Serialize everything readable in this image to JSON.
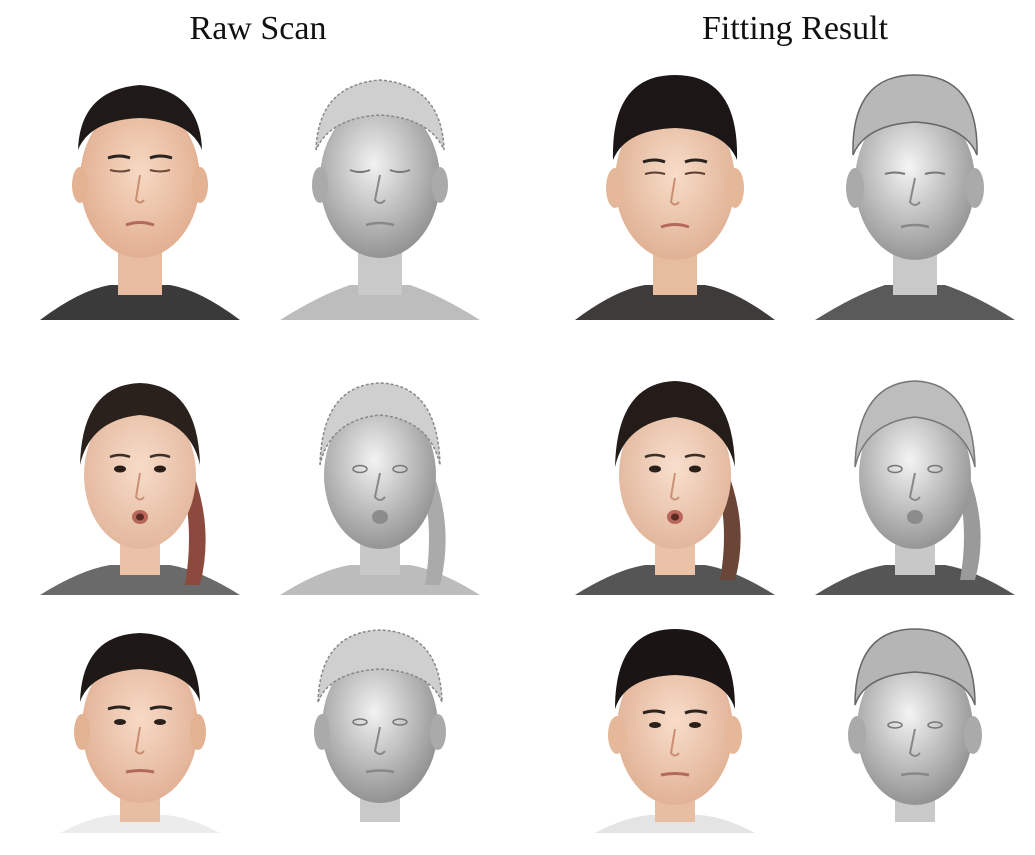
{
  "headers": {
    "left": "Raw Scan",
    "right": "Fitting Result"
  },
  "columns": [
    "raw-photo",
    "raw-geometry",
    "fit-photo",
    "fit-geometry"
  ],
  "rows": [
    {
      "subject": "subject-1",
      "hair": "short-dark",
      "expression": "eyes-closed"
    },
    {
      "subject": "subject-2",
      "hair": "ponytail",
      "expression": "pursed-lips"
    },
    {
      "subject": "subject-3",
      "hair": "short-dark",
      "expression": "neutral"
    }
  ],
  "colors": {
    "skin": "#f2cfb6",
    "skin_shade": "#e3b193",
    "hair": "#1f1a18",
    "shirt": "#3a3a3a",
    "geometry": "#d9d9d9",
    "geometry_shade": "#9a9a9a"
  }
}
